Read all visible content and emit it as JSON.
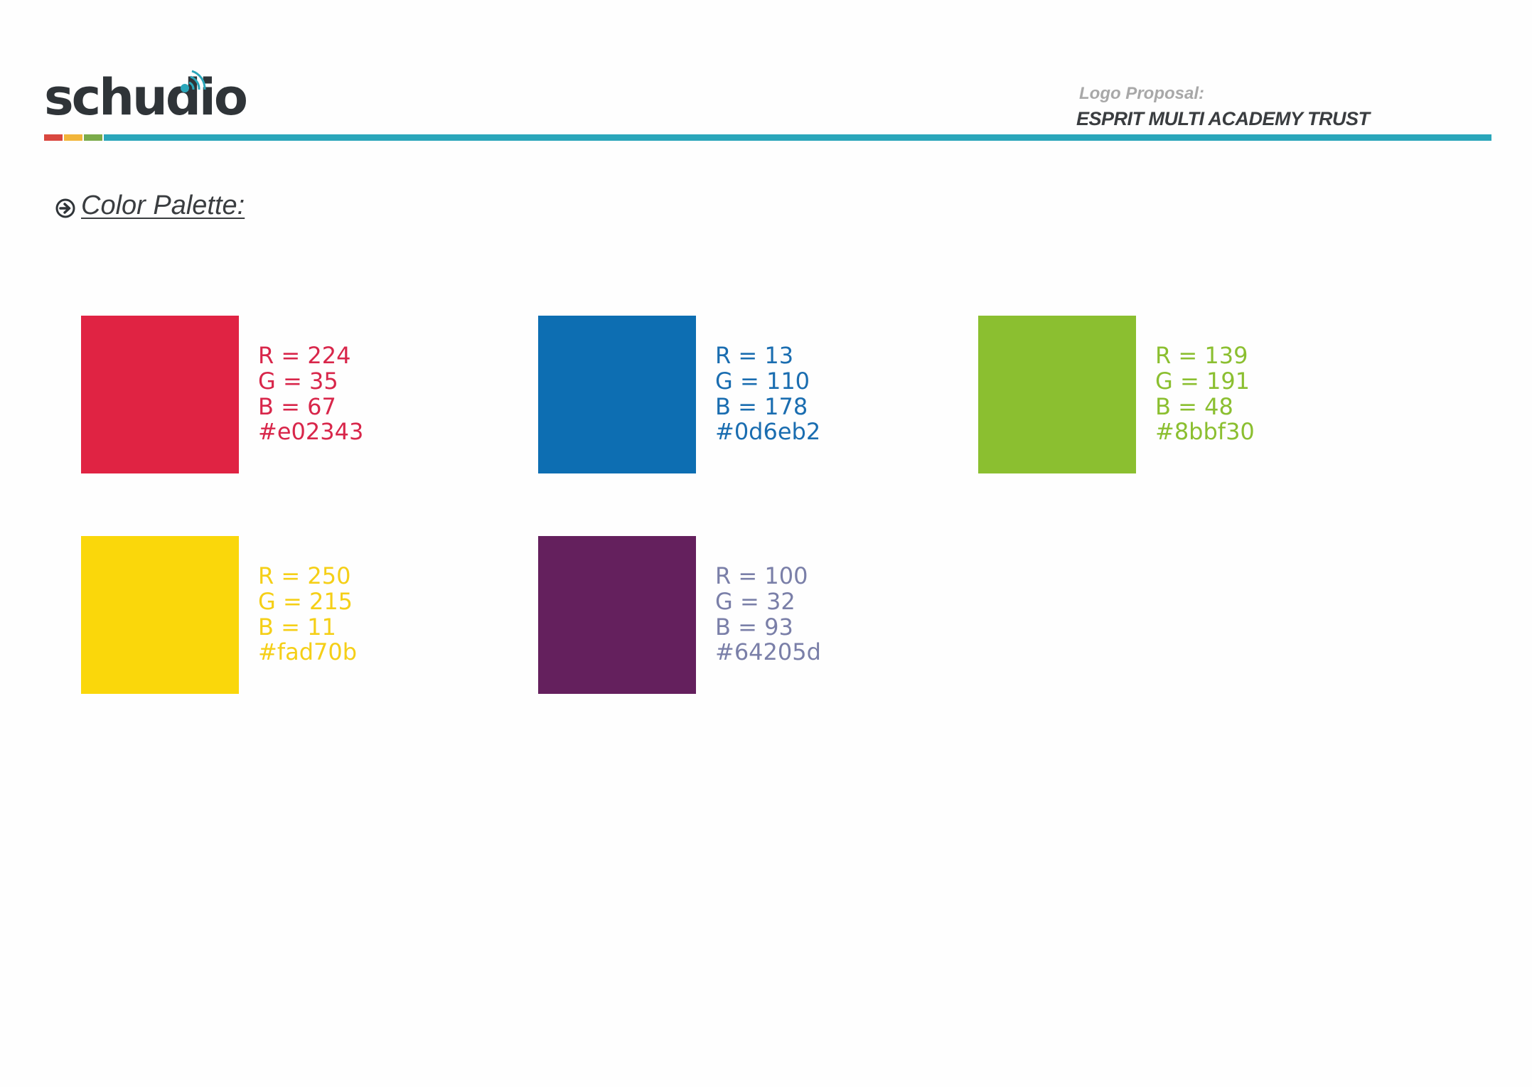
{
  "header": {
    "brand": "schudio",
    "proposal_label": "Logo Proposal:",
    "proposal_title": "ESPRIT MULTI ACADEMY TRUST",
    "accent_colors": [
      "#d9473f",
      "#f2b53a",
      "#7bab4a"
    ],
    "rule_color": "#2aa6ba"
  },
  "section": {
    "icon": "arrow-circle-right-icon",
    "title": "Color Palette:"
  },
  "swatches": [
    {
      "color": "#e02343",
      "text_color": "#d8264a",
      "r": "R = 224",
      "g": "G = 35",
      "b": "B = 67",
      "hex": "#e02343"
    },
    {
      "color": "#0d6eb2",
      "text_color": "#1a6db0",
      "r": "R = 13",
      "g": "G = 110",
      "b": "B = 178",
      "hex": "#0d6eb2"
    },
    {
      "color": "#8bbf30",
      "text_color": "#8bbf30",
      "r": "R = 139",
      "g": "G = 191",
      "b": "B = 48",
      "hex": "#8bbf30"
    },
    {
      "color": "#fad70b",
      "text_color": "#f5cf17",
      "r": "R = 250",
      "g": "G = 215",
      "b": "B = 11",
      "hex": "#fad70b"
    },
    {
      "color": "#64205d",
      "text_color": "#7a7fa8",
      "r": "R = 100",
      "g": "G = 32",
      "b": "B = 93",
      "hex": "#64205d"
    }
  ]
}
